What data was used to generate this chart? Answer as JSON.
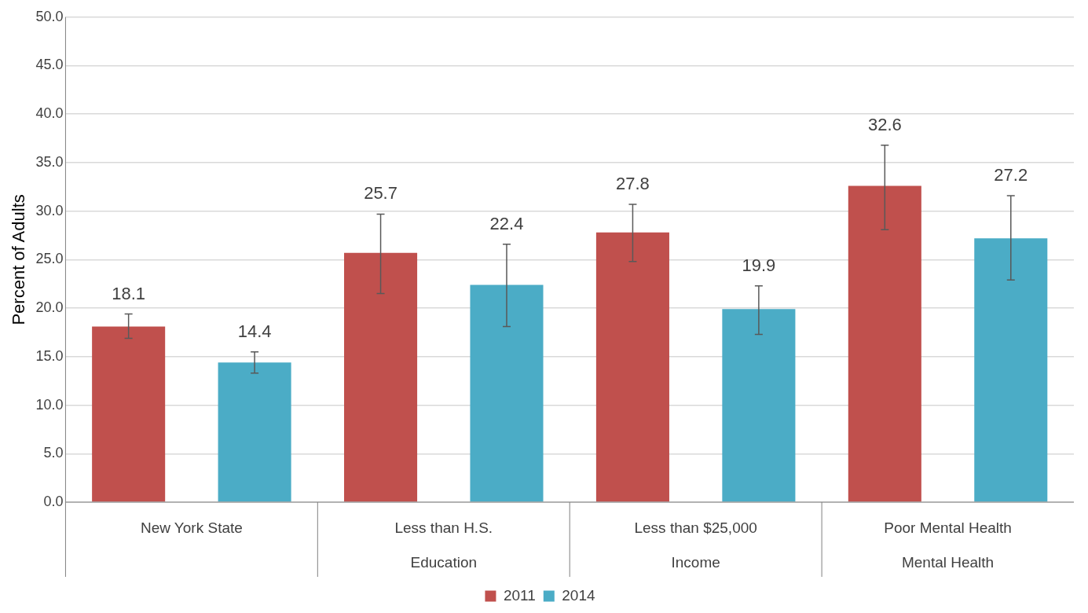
{
  "chart_data": {
    "type": "bar",
    "ylabel": "Percent of Adults",
    "categories": [
      "New York State",
      "Less than H.S.",
      "Less than $25,000",
      "Poor Mental Health"
    ],
    "series": [
      {
        "name": "2011",
        "color": "#c0504d",
        "values": [
          18.1,
          25.7,
          27.8,
          32.6
        ],
        "errors": [
          [
            16.9,
            19.4
          ],
          [
            21.5,
            29.7
          ],
          [
            24.8,
            30.7
          ],
          [
            28.1,
            36.8
          ]
        ]
      },
      {
        "name": "2014",
        "color": "#4bacc6",
        "values": [
          14.4,
          22.4,
          19.9,
          27.2
        ],
        "errors": [
          [
            13.3,
            15.5
          ],
          [
            18.1,
            26.6
          ],
          [
            17.3,
            22.3
          ],
          [
            22.9,
            31.6
          ]
        ]
      }
    ],
    "ylim": [
      0,
      50
    ],
    "yticks": [
      {
        "value": 0,
        "label": "0.0"
      },
      {
        "value": 5,
        "label": "5.0"
      },
      {
        "value": 10,
        "label": "10.0"
      },
      {
        "value": 15,
        "label": "15.0"
      },
      {
        "value": 20,
        "label": "20.0"
      },
      {
        "value": 25,
        "label": "25.0"
      },
      {
        "value": 30,
        "label": "30.0"
      },
      {
        "value": 35,
        "label": "35.0"
      },
      {
        "value": 40,
        "label": "40.0"
      },
      {
        "value": 45,
        "label": "45.0"
      },
      {
        "value": 50,
        "label": "50.0"
      }
    ],
    "annotations": [
      "Education",
      "Income",
      "Mental Health"
    ],
    "grid": "y",
    "legend": "bottom",
    "data_labels": true
  }
}
